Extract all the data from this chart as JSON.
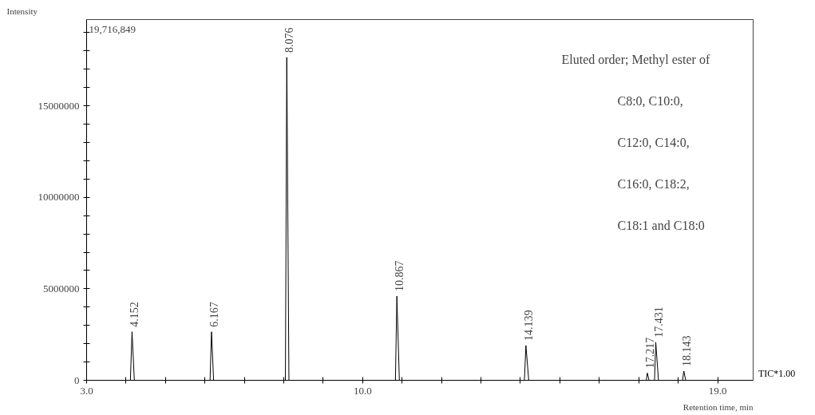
{
  "chart_data": {
    "type": "line",
    "xlabel": "Retention time, min",
    "ylabel": "Intensity",
    "series": [
      {
        "color": "#000000",
        "x": [
          3.0,
          4.11,
          4.152,
          4.21,
          6.13,
          6.167,
          6.22,
          8.04,
          8.076,
          8.13,
          10.83,
          10.867,
          10.93,
          14.1,
          14.139,
          14.21,
          17.19,
          17.217,
          17.26,
          17.4,
          17.431,
          17.5,
          18.11,
          18.143,
          18.19,
          19.9
        ],
        "values": [
          0,
          0,
          2650000,
          0,
          0,
          2650000,
          0,
          0,
          17650000,
          0,
          0,
          4600000,
          0,
          0,
          1900000,
          0,
          0,
          400000,
          0,
          0,
          2080000,
          0,
          0,
          500000,
          0,
          0
        ]
      }
    ],
    "xlim": [
      3.0,
      19.9
    ],
    "xticks": [
      {
        "value": 3,
        "label": "3.0"
      },
      {
        "value": 4,
        "label": null
      },
      {
        "value": 5,
        "label": null
      },
      {
        "value": 6,
        "label": null
      },
      {
        "value": 7,
        "label": null
      },
      {
        "value": 8,
        "label": null
      },
      {
        "value": 9,
        "label": null
      },
      {
        "value": 10,
        "label": "10.0"
      },
      {
        "value": 11,
        "label": null
      },
      {
        "value": 12,
        "label": null
      },
      {
        "value": 13,
        "label": null
      },
      {
        "value": 14,
        "label": null
      },
      {
        "value": 15,
        "label": null
      },
      {
        "value": 16,
        "label": null
      },
      {
        "value": 17,
        "label": null
      },
      {
        "value": 18,
        "label": null
      },
      {
        "value": 19,
        "label": "19.0"
      }
    ],
    "ylim": [
      0,
      19716849
    ],
    "yticks": [
      0,
      {
        "value": 1000000,
        "label": null
      },
      {
        "value": 2000000,
        "label": null
      },
      {
        "value": 3000000,
        "label": null
      },
      {
        "value": 4000000,
        "label": null
      },
      5000000,
      {
        "value": 6000000,
        "label": null
      },
      {
        "value": 7000000,
        "label": null
      },
      {
        "value": 8000000,
        "label": null
      },
      {
        "value": 9000000,
        "label": null
      },
      10000000,
      {
        "value": 11000000,
        "label": null
      },
      {
        "value": 12000000,
        "label": null
      },
      {
        "value": 13000000,
        "label": null
      },
      {
        "value": 14000000,
        "label": null
      },
      15000000,
      {
        "value": 16000000,
        "label": null
      },
      {
        "value": 17000000,
        "label": null
      },
      {
        "value": 18000000,
        "label": null
      },
      {
        "value": 19000000,
        "label": null
      }
    ],
    "grid": false,
    "marker": "none",
    "line_style": "solid",
    "annotations": [
      "19,716,849",
      "Eluted order; Methyl ester of",
      "C8:0, C10:0,",
      "C12:0, C14:0,",
      "C16:0, C18:2,",
      "C18:1 and C18:0",
      "TIC*1.00",
      {
        "text": "4.152",
        "x": 4.152,
        "y": 2650000
      },
      {
        "text": "6.167",
        "x": 6.167,
        "y": 2650000
      },
      {
        "text": "8.076",
        "x": 8.076,
        "y": 17650000
      },
      {
        "text": "10.867",
        "x": 10.867,
        "y": 4600000
      },
      {
        "text": "14.139",
        "x": 14.139,
        "y": 1900000
      },
      {
        "text": "17.217",
        "x": 17.217,
        "y": 400000
      },
      {
        "text": "17.431",
        "x": 17.431,
        "y": 2080000
      },
      {
        "text": "18.143",
        "x": 18.143,
        "y": 500000
      }
    ]
  }
}
